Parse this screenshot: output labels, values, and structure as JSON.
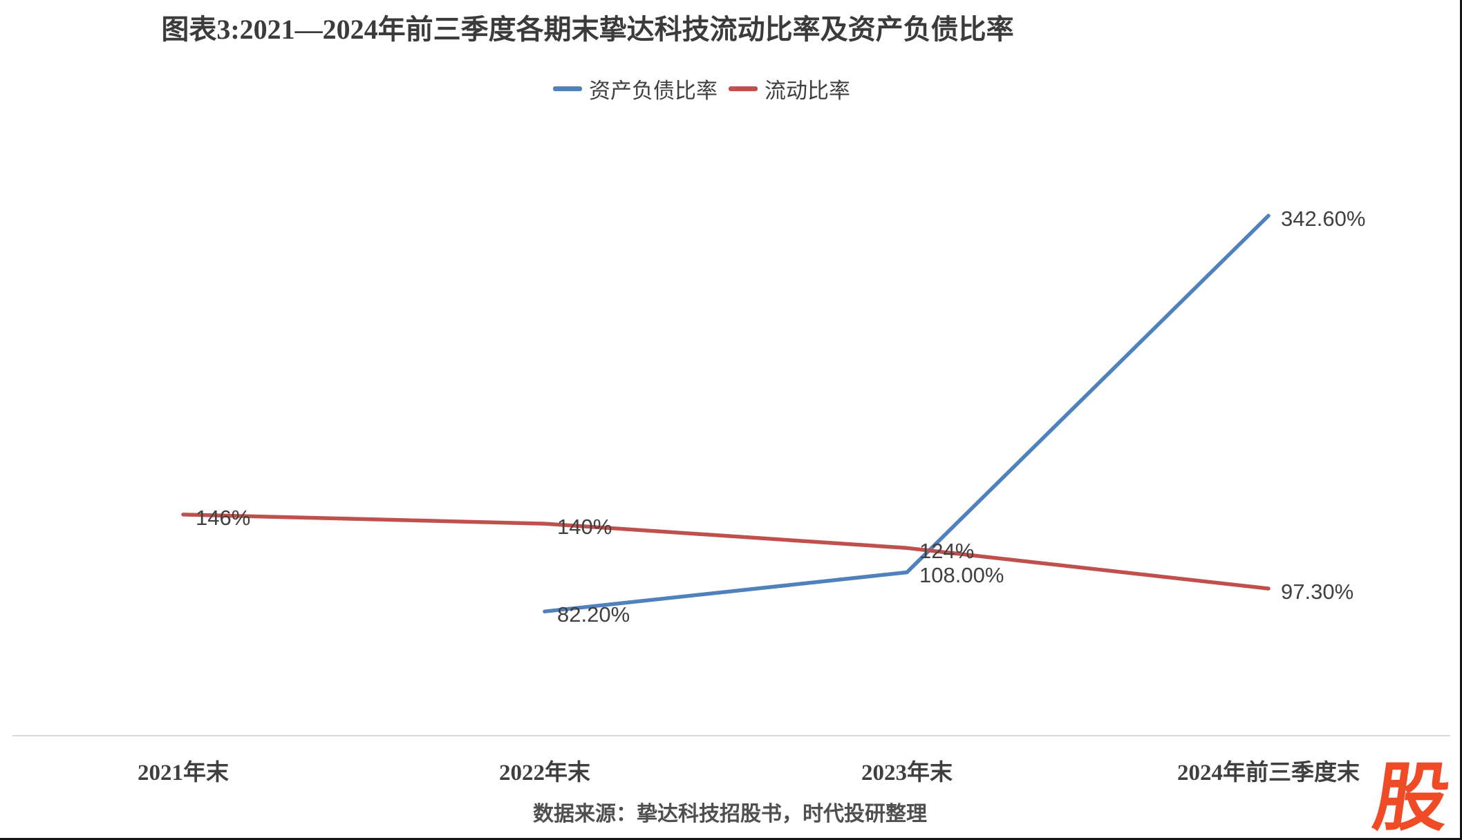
{
  "title": "图表3:2021—2024年前三季度各期末挚达科技流动比率及资产负债比率",
  "legend": [
    {
      "label": "资产负债比率",
      "color": "#4F81BD"
    },
    {
      "label": "流动比率",
      "color": "#C0504D"
    }
  ],
  "source_note": "数据来源：挚达科技招股书，时代投研整理",
  "logo_text": "股",
  "colors": {
    "series_blue": "#4F81BD",
    "series_red": "#C0504D",
    "axis_line": "#D9D9D9",
    "text_dark": "#3f3f3f",
    "logo_red": "#f04b27"
  },
  "chart_data": {
    "type": "line",
    "title": "图表3:2021—2024年前三季度各期末挚达科技流动比率及资产负债比率",
    "categories": [
      "2021年末",
      "2022年末",
      "2023年末",
      "2024年前三季度末"
    ],
    "series": [
      {
        "name": "资产负债比率",
        "color": "#4F81BD",
        "values": [
          null,
          82.2,
          108.0,
          342.6
        ],
        "labels": [
          null,
          "82.20%",
          "108.00%",
          "342.60%"
        ]
      },
      {
        "name": "流动比率",
        "color": "#C0504D",
        "values": [
          146,
          140,
          124,
          97.3
        ],
        "labels": [
          "146%",
          "140%",
          "124%",
          "97.30%"
        ]
      }
    ],
    "unit": "%",
    "ylim": [
      60,
      360
    ],
    "grid": false,
    "y_axis_visible": false,
    "legend_position": "top",
    "data_labels": "right-of-point",
    "xlabel": "",
    "ylabel": ""
  }
}
